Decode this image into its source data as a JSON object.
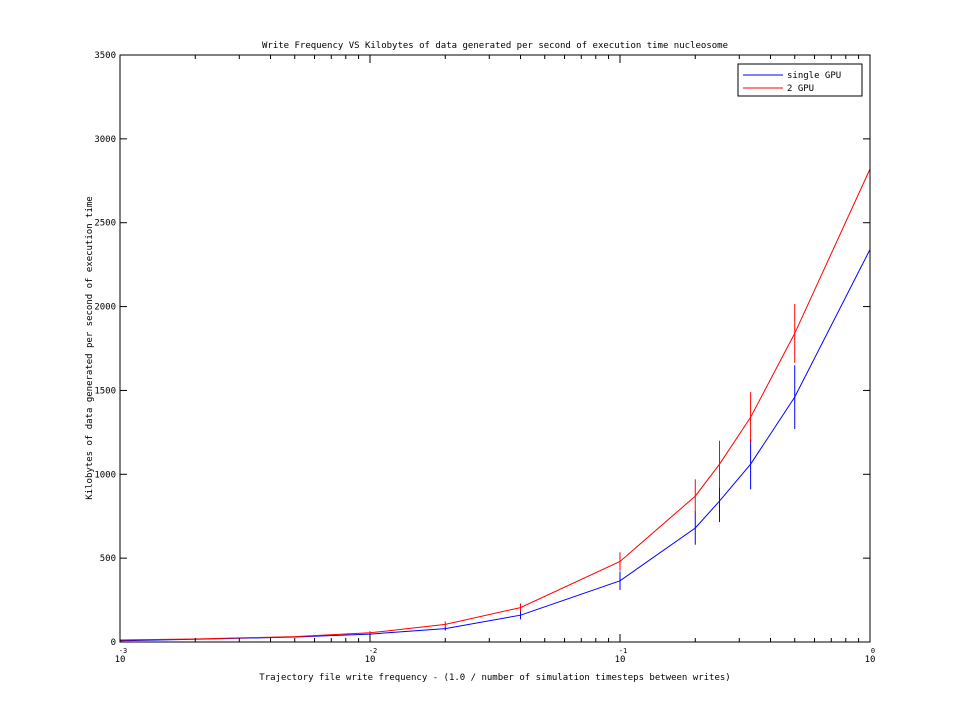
{
  "chart_data": {
    "type": "line",
    "title": "Write Frequency VS Kilobytes of data generated per second of execution time nucleosome",
    "xlabel": "Trajectory file write frequency - (1.0 / number of simulation timesteps between writes)",
    "ylabel": "Kilobytes of data generated per second of execution time",
    "xscale": "log",
    "xlim": [
      0.001,
      1
    ],
    "ylim": [
      0,
      3500
    ],
    "x_ticks": [
      {
        "base": "10",
        "exp": "-3",
        "value": 0.001
      },
      {
        "base": "10",
        "exp": "-2",
        "value": 0.01
      },
      {
        "base": "10",
        "exp": "-1",
        "value": 0.1
      },
      {
        "base": "10",
        "exp": "0",
        "value": 1
      }
    ],
    "y_ticks": [
      "0",
      "500",
      "1000",
      "1500",
      "2000",
      "2500",
      "3000",
      "3500"
    ],
    "y_tick_values": [
      0,
      500,
      1000,
      1500,
      2000,
      2500,
      3000,
      3500
    ],
    "legend_position": "top-right",
    "grid": false,
    "series": [
      {
        "name": "single GPU",
        "color": "#0000ff",
        "x": [
          0.001,
          0.002,
          0.005,
          0.01,
          0.02,
          0.04,
          0.1,
          0.2,
          0.25,
          0.333,
          0.5,
          1
        ],
        "y": [
          8,
          16,
          30,
          47,
          80,
          160,
          365,
          680,
          840,
          1060,
          1460,
          2340
        ],
        "error": [
          0,
          0,
          0,
          8,
          12,
          25,
          55,
          100,
          125,
          150,
          190,
          0
        ]
      },
      {
        "name": "2 GPU",
        "color": "#ff0000",
        "x": [
          0.001,
          0.002,
          0.005,
          0.01,
          0.02,
          0.04,
          0.1,
          0.2,
          0.25,
          0.333,
          0.5,
          1
        ],
        "y": [
          12,
          18,
          32,
          55,
          105,
          205,
          480,
          870,
          1060,
          1340,
          1840,
          2820
        ],
        "error": [
          0,
          0,
          0,
          10,
          18,
          25,
          55,
          100,
          140,
          150,
          175,
          0
        ]
      }
    ]
  }
}
